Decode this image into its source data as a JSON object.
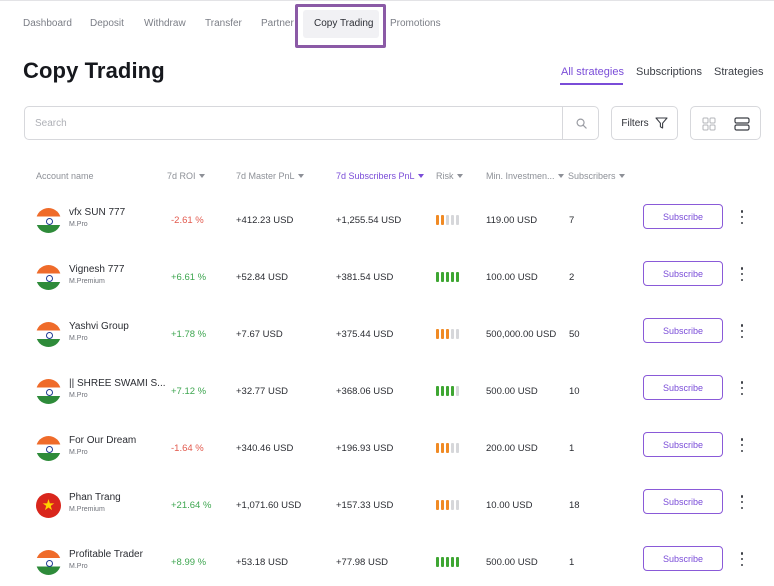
{
  "nav": {
    "items": [
      {
        "label": "Dashboard",
        "active": false
      },
      {
        "label": "Deposit",
        "active": false
      },
      {
        "label": "Withdraw",
        "active": false
      },
      {
        "label": "Transfer",
        "active": false
      },
      {
        "label": "Partner",
        "active": false
      },
      {
        "label": "Copy Trading",
        "active": true
      },
      {
        "label": "Promotions",
        "active": false
      }
    ]
  },
  "page_title": "Copy Trading",
  "subtabs": [
    {
      "label": "All strategies",
      "active": true
    },
    {
      "label": "Subscriptions",
      "active": false
    },
    {
      "label": "Strategies",
      "active": false
    }
  ],
  "search": {
    "placeholder": "Search",
    "value": ""
  },
  "filters_label": "Filters",
  "table": {
    "headers": [
      {
        "label": "Account name",
        "sortable": false,
        "active": false
      },
      {
        "label": "7d ROI",
        "sortable": true,
        "active": false
      },
      {
        "label": "7d Master PnL",
        "sortable": true,
        "active": false
      },
      {
        "label": "7d Subscribers PnL",
        "sortable": true,
        "active": true
      },
      {
        "label": "Risk",
        "sortable": true,
        "active": false
      },
      {
        "label": "Min. Investmen...",
        "sortable": true,
        "active": false
      },
      {
        "label": "Subscribers",
        "sortable": true,
        "active": false
      }
    ],
    "rows": [
      {
        "flag": "india",
        "name": "vfx SUN 777",
        "type": "M.Pro",
        "roi": "-2.61 %",
        "roi_sign": "neg",
        "master_pnl": "+412.23 USD",
        "subscribers_pnl": "+1,255.54 USD",
        "risk_level": 2,
        "risk_color": "#f08a24",
        "min_investment": "119.00 USD",
        "subscribers": "7",
        "action": "Subscribe"
      },
      {
        "flag": "india",
        "name": "Vignesh 777",
        "type": "M.Premium",
        "roi": "+6.61 %",
        "roi_sign": "pos",
        "master_pnl": "+52.84 USD",
        "subscribers_pnl": "+381.54 USD",
        "risk_level": 5,
        "risk_color": "#3ea632",
        "min_investment": "100.00 USD",
        "subscribers": "2",
        "action": "Subscribe"
      },
      {
        "flag": "india",
        "name": "Yashvi Group",
        "type": "M.Pro",
        "roi": "+1.78 %",
        "roi_sign": "pos",
        "master_pnl": "+7.67 USD",
        "subscribers_pnl": "+375.44 USD",
        "risk_level": 3,
        "risk_color": "#f08a24",
        "min_investment": "500,000.00 USD",
        "subscribers": "50",
        "action": "Subscribe"
      },
      {
        "flag": "india",
        "name": "|| SHREE SWAMI S...",
        "type": "M.Pro",
        "roi": "+7.12 %",
        "roi_sign": "pos",
        "master_pnl": "+32.77 USD",
        "subscribers_pnl": "+368.06 USD",
        "risk_level": 4,
        "risk_color": "#3ea632",
        "min_investment": "500.00 USD",
        "subscribers": "10",
        "action": "Subscribe"
      },
      {
        "flag": "india",
        "name": "For Our Dream",
        "type": "M.Pro",
        "roi": "-1.64 %",
        "roi_sign": "neg",
        "master_pnl": "+340.46 USD",
        "subscribers_pnl": "+196.93 USD",
        "risk_level": 3,
        "risk_color": "#f08a24",
        "min_investment": "200.00 USD",
        "subscribers": "1",
        "action": "Subscribe"
      },
      {
        "flag": "vietnam",
        "name": "Phan Trang",
        "type": "M.Premium",
        "roi": "+21.64 %",
        "roi_sign": "pos",
        "master_pnl": "+1,071.60 USD",
        "subscribers_pnl": "+157.33 USD",
        "risk_level": 3,
        "risk_color": "#f08a24",
        "min_investment": "10.00 USD",
        "subscribers": "18",
        "action": "Subscribe"
      },
      {
        "flag": "india",
        "name": "Profitable Trader",
        "type": "M.Pro",
        "roi": "+8.99 %",
        "roi_sign": "pos",
        "master_pnl": "+53.18 USD",
        "subscribers_pnl": "+77.98 USD",
        "risk_level": 5,
        "risk_color": "#3ea632",
        "min_investment": "500.00 USD",
        "subscribers": "1",
        "action": "Subscribe"
      }
    ]
  },
  "colors": {
    "accent": "#7a4cd8",
    "positive": "#3ea650",
    "negative": "#e25a4e",
    "highlight_box": "#8b5aa6"
  }
}
